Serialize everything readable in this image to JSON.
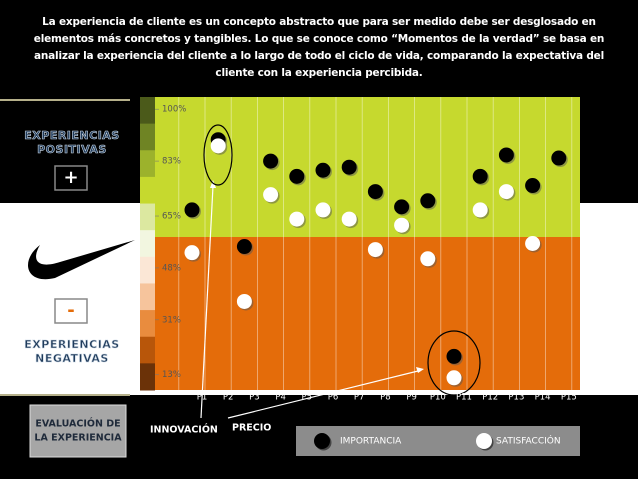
{
  "chart_data": {
    "type": "scatter",
    "title": "La experiencia de cliente es un concepto abstracto que para ser medido debe ser desglosado en elementos más concretos y tangibles.  Lo que se conoce como “Momentos de la verdad” se basa en analizar la experiencia del cliente a lo largo de todo el ciclo de vida, comparando la expectativa del cliente con la experiencia percibida.",
    "categories": [
      "P1",
      "P2",
      "P3",
      "P4",
      "P5",
      "P6",
      "P7",
      "P8",
      "P9",
      "P10",
      "P11",
      "P12",
      "P13",
      "P14",
      "P15"
    ],
    "series": [
      {
        "name": "IMPORTANCIA",
        "color": "#000000",
        "values": [
          67,
          90,
          55,
          83,
          78,
          80,
          81,
          73,
          68,
          70,
          19,
          78,
          85,
          75,
          84
        ]
      },
      {
        "name": "SATISFACCIÓN",
        "color": "#ffffff",
        "values": [
          53,
          88,
          37,
          72,
          64,
          67,
          64,
          54,
          62,
          51,
          12,
          67,
          73,
          56,
          null
        ]
      }
    ],
    "ylim": [
      8,
      104
    ],
    "yticks": [
      {
        "value": 13,
        "label": "13%"
      },
      {
        "value": 31,
        "label": "31%"
      },
      {
        "value": 48,
        "label": "48%"
      },
      {
        "value": 65,
        "label": "65%"
      },
      {
        "value": 83,
        "label": "83%"
      },
      {
        "value": 100,
        "label": "100%"
      }
    ],
    "annotations": [
      "INNOVACIÓN",
      "PRECIO"
    ]
  },
  "left_panel": {
    "positive": [
      "EXPERIENCIAS",
      "POSITIVAS"
    ],
    "plus": "+",
    "minus": "-",
    "negative": [
      "EXPERIENCIAS",
      "NEGATIVAS"
    ],
    "evaluation": [
      "EVALUACIÓN DE",
      "LA EXPERIENCIA"
    ]
  }
}
